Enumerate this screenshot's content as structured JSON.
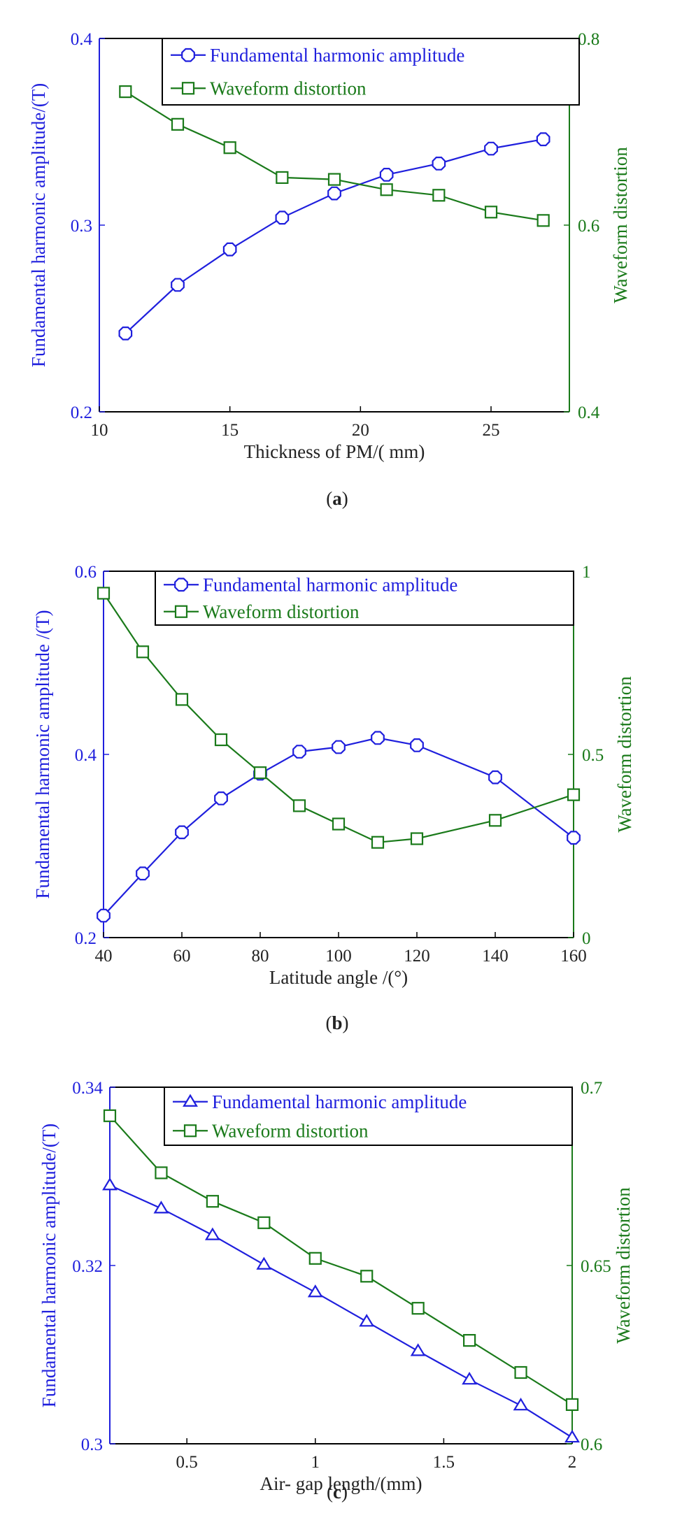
{
  "colors": {
    "left": "#1f1fdd",
    "right": "#1a7a1a",
    "frame": "#000000"
  },
  "chart_data": [
    {
      "type": "line",
      "caption_open": "(",
      "caption_letter": "a",
      "caption_close": ")",
      "xlabel": "Thickness of PM/( mm)",
      "ylabel_left": "Fundamental harmonic amplitude/(T)",
      "ylabel_right": "Waveform distortion",
      "xlim": [
        10,
        28
      ],
      "ylim_left": [
        0.2,
        0.4
      ],
      "ylim_right": [
        0.4,
        0.8
      ],
      "xticks": [
        {
          "v": 10,
          "t": "10"
        },
        {
          "v": 15,
          "t": "15"
        },
        {
          "v": 20,
          "t": "20"
        },
        {
          "v": 25,
          "t": "25"
        }
      ],
      "yticks_left": [
        {
          "v": 0.2,
          "t": "0.2"
        },
        {
          "v": 0.3,
          "t": "0.3"
        },
        {
          "v": 0.4,
          "t": "0.4"
        }
      ],
      "yticks_right": [
        {
          "v": 0.4,
          "t": "0.4"
        },
        {
          "v": 0.6,
          "t": "0.6"
        },
        {
          "v": 0.8,
          "t": "0.8"
        }
      ],
      "series": [
        {
          "name": "Fundamental harmonic amplitude",
          "axis": "left",
          "marker": "octagon",
          "x": [
            11,
            13,
            15,
            17,
            19,
            21,
            23,
            25,
            27
          ],
          "y": [
            0.242,
            0.268,
            0.287,
            0.304,
            0.317,
            0.327,
            0.333,
            0.341,
            0.346
          ]
        },
        {
          "name": "Waveform distortion",
          "axis": "right",
          "marker": "square",
          "x": [
            11,
            13,
            15,
            17,
            19,
            21,
            23,
            25,
            27
          ],
          "y": [
            0.743,
            0.708,
            0.683,
            0.651,
            0.649,
            0.638,
            0.632,
            0.614,
            0.605
          ]
        }
      ]
    },
    {
      "type": "line",
      "caption_open": "(",
      "caption_letter": "b",
      "caption_close": ")",
      "xlabel": "Latitude angle /(°)",
      "ylabel_left": "Fundamental harmonic amplitude /(T)",
      "ylabel_right": "Waveform distortion",
      "xlim": [
        40,
        160
      ],
      "ylim_left": [
        0.2,
        0.6
      ],
      "ylim_right": [
        0,
        1
      ],
      "xticks": [
        {
          "v": 40,
          "t": "40"
        },
        {
          "v": 60,
          "t": "60"
        },
        {
          "v": 80,
          "t": "80"
        },
        {
          "v": 100,
          "t": "100"
        },
        {
          "v": 120,
          "t": "120"
        },
        {
          "v": 140,
          "t": "140"
        },
        {
          "v": 160,
          "t": "160"
        }
      ],
      "yticks_left": [
        {
          "v": 0.2,
          "t": "0.2"
        },
        {
          "v": 0.4,
          "t": "0.4"
        },
        {
          "v": 0.6,
          "t": "0.6"
        }
      ],
      "yticks_right": [
        {
          "v": 0,
          "t": "0"
        },
        {
          "v": 0.5,
          "t": "0.5"
        },
        {
          "v": 1,
          "t": "1"
        }
      ],
      "series": [
        {
          "name": "Fundamental harmonic amplitude",
          "axis": "left",
          "marker": "octagon",
          "x": [
            40,
            50,
            60,
            70,
            80,
            90,
            100,
            110,
            120,
            140,
            160
          ],
          "y": [
            0.224,
            0.27,
            0.315,
            0.352,
            0.379,
            0.403,
            0.408,
            0.418,
            0.41,
            0.375,
            0.309
          ]
        },
        {
          "name": "Waveform distortion",
          "axis": "right",
          "marker": "square",
          "x": [
            40,
            50,
            60,
            70,
            80,
            90,
            100,
            110,
            120,
            140,
            160
          ],
          "y": [
            0.94,
            0.78,
            0.65,
            0.54,
            0.45,
            0.36,
            0.31,
            0.26,
            0.27,
            0.32,
            0.39
          ]
        }
      ]
    },
    {
      "type": "line",
      "caption_open": "(",
      "caption_letter": "c",
      "caption_close": ")",
      "xlabel": "Air- gap length/(mm)",
      "ylabel_left": "Fundamental harmonic amplitude/(T)",
      "ylabel_right": "Waveform distortion",
      "xlim": [
        0.2,
        2
      ],
      "ylim_left": [
        0.3,
        0.34
      ],
      "ylim_right": [
        0.6,
        0.7
      ],
      "xticks": [
        {
          "v": 0.5,
          "t": "0.5"
        },
        {
          "v": 1,
          "t": "1"
        },
        {
          "v": 1.5,
          "t": "1.5"
        },
        {
          "v": 2,
          "t": "2"
        }
      ],
      "yticks_left": [
        {
          "v": 0.3,
          "t": "0.3"
        },
        {
          "v": 0.32,
          "t": "0.32"
        },
        {
          "v": 0.34,
          "t": "0.34"
        }
      ],
      "yticks_right": [
        {
          "v": 0.6,
          "t": "0.6"
        },
        {
          "v": 0.65,
          "t": "0.65"
        },
        {
          "v": 0.7,
          "t": "0.7"
        }
      ],
      "series": [
        {
          "name": "Fundamental harmonic amplitude",
          "axis": "left",
          "marker": "triangle",
          "x": [
            0.2,
            0.4,
            0.6,
            0.8,
            1.0,
            1.2,
            1.4,
            1.6,
            1.8,
            2.0
          ],
          "y": [
            0.329,
            0.3264,
            0.3234,
            0.3201,
            0.317,
            0.3137,
            0.3104,
            0.3072,
            0.3043,
            0.3007
          ]
        },
        {
          "name": "Waveform distortion",
          "axis": "right",
          "marker": "square",
          "x": [
            0.2,
            0.4,
            0.6,
            0.8,
            1.0,
            1.2,
            1.4,
            1.6,
            1.8,
            2.0
          ],
          "y": [
            0.692,
            0.676,
            0.668,
            0.662,
            0.652,
            0.647,
            0.638,
            0.629,
            0.62,
            0.611
          ]
        }
      ]
    }
  ]
}
